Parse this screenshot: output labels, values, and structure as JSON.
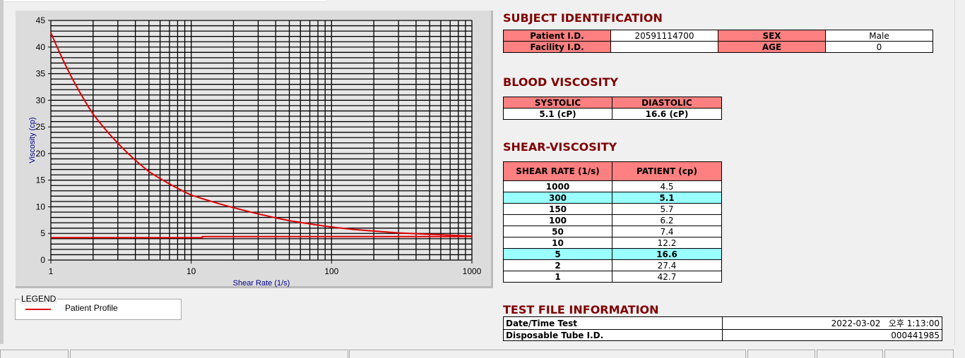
{
  "chart_data": {
    "type": "line",
    "xlabel": "Shear Rate (1/s)",
    "ylabel": "Viscosity (cp)",
    "xscale": "log",
    "xlim": [
      1,
      1000
    ],
    "ylim": [
      0,
      45
    ],
    "x_ticks": [
      "1",
      "10",
      "100",
      "1000"
    ],
    "y_ticks": [
      "0",
      "5",
      "10",
      "15",
      "20",
      "25",
      "30",
      "35",
      "40",
      "45"
    ],
    "grid": true,
    "series": [
      {
        "name": "Patient Profile",
        "color": "#e00000",
        "x": [
          1,
          2,
          5,
          10,
          50,
          100,
          150,
          300,
          1000
        ],
        "y": [
          42.7,
          27.4,
          16.6,
          12.2,
          7.4,
          6.2,
          5.7,
          5.1,
          4.5
        ]
      },
      {
        "color": "#e00000",
        "x": [
          1,
          12,
          12,
          1000
        ],
        "y": [
          4.2,
          4.2,
          4.4,
          4.4
        ]
      }
    ],
    "legend": {
      "title": "LEGEND",
      "placement": "below"
    }
  },
  "subject": {
    "title": "SUBJECT IDENTIFICATION",
    "patient_id_label": "Patient I.D.",
    "patient_id": "20591114700",
    "sex_label": "SEX",
    "sex": "Male",
    "facility_label": "Facility I.D.",
    "facility": "",
    "age_label": "AGE",
    "age": "0"
  },
  "blood": {
    "title": "BLOOD VISCOSITY",
    "systolic_label": "SYSTOLIC",
    "diastolic_label": "DIASTOLIC",
    "systolic": "5.1 (cP)",
    "diastolic": "16.6 (cP)"
  },
  "shear": {
    "title": "SHEAR-VISCOSITY",
    "col1": "SHEAR RATE (1/s)",
    "col2": "PATIENT (cp)",
    "rows": [
      [
        "1000",
        "4.5",
        false
      ],
      [
        "300",
        "5.1",
        true
      ],
      [
        "150",
        "5.7",
        false
      ],
      [
        "100",
        "6.2",
        false
      ],
      [
        "50",
        "7.4",
        false
      ],
      [
        "10",
        "12.2",
        false
      ],
      [
        "5",
        "16.6",
        true
      ],
      [
        "2",
        "27.4",
        false
      ],
      [
        "1",
        "42.7",
        false
      ]
    ]
  },
  "testfile": {
    "title": "TEST FILE INFORMATION",
    "date_label": "Date/Time Test",
    "date": "2022-03-02   오후 1:13:00",
    "tube_label": "Disposable Tube I.D.",
    "tube": "000441985"
  },
  "colors": {
    "header_pink": "#ff8080",
    "highlight": "#99ffff",
    "title": "#800000"
  }
}
